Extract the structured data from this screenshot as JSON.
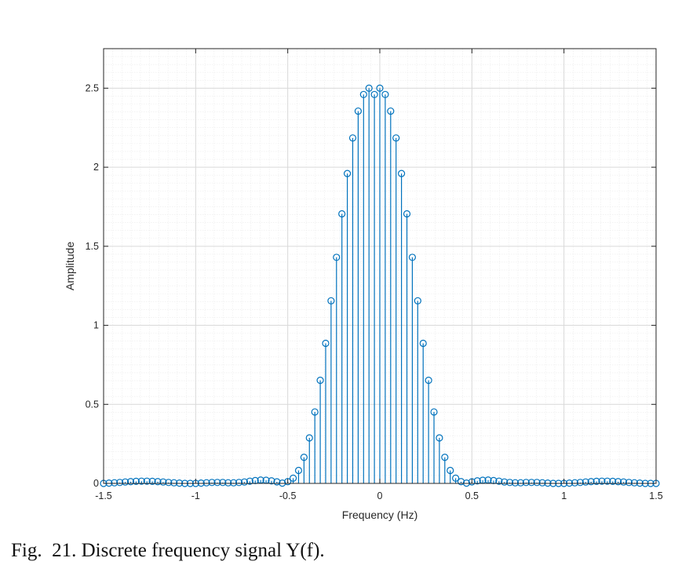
{
  "caption": "Fig.  21. Discrete frequency signal Y(f).",
  "chart_data": {
    "type": "stem",
    "title": "",
    "xlabel": "Frequency (Hz)",
    "ylabel": "Amplitude",
    "xlim": [
      -1.5,
      1.5
    ],
    "ylim": [
      0,
      2.75
    ],
    "xticks": [
      -1.5,
      -1,
      -0.5,
      0,
      0.5,
      1,
      1.5
    ],
    "xtick_labels": [
      "-1.5",
      "-1",
      "-0.5",
      "0",
      "0.5",
      "1",
      "1.5"
    ],
    "yticks": [
      0,
      0.5,
      1,
      1.5,
      2,
      2.5
    ],
    "ytick_labels": [
      "0",
      "0.5",
      "1",
      "1.5",
      "2",
      "2.5"
    ],
    "grid": true,
    "minor_grid": true,
    "color": "#0072BD",
    "series": [
      {
        "x": [
          -1.5,
          -1.4706,
          -1.4412,
          -1.4118,
          -1.3824,
          -1.3529,
          -1.3235,
          -1.2941,
          -1.2647,
          -1.2353,
          -1.2059,
          -1.1765,
          -1.1471,
          -1.1176,
          -1.0882,
          -1.0588,
          -1.0294,
          -1.0,
          -0.9706,
          -0.9412,
          -0.9118,
          -0.8824,
          -0.8529,
          -0.8235,
          -0.7941,
          -0.7647,
          -0.7353,
          -0.7059,
          -0.6765,
          -0.6471,
          -0.6176,
          -0.5882,
          -0.5588,
          -0.5294,
          -0.5,
          -0.4706,
          -0.4412,
          -0.4118,
          -0.3824,
          -0.3529,
          -0.3235,
          -0.2941,
          -0.2647,
          -0.2353,
          -0.2059,
          -0.1765,
          -0.1471,
          -0.1176,
          -0.0882,
          -0.0588,
          -0.0294,
          0.0,
          0.0294,
          0.0588,
          0.0882,
          0.1176,
          0.1471,
          0.1765,
          0.2059,
          0.2353,
          0.2647,
          0.2941,
          0.3235,
          0.3529,
          0.3824,
          0.4118,
          0.4412,
          0.4706,
          0.5,
          0.5294,
          0.5588,
          0.5882,
          0.6176,
          0.6471,
          0.6765,
          0.7059,
          0.7353,
          0.7647,
          0.7941,
          0.8235,
          0.8529,
          0.8824,
          0.9118,
          0.9412,
          0.9706,
          1.0,
          1.0294,
          1.0588,
          1.0882,
          1.1176,
          1.1471,
          1.1765,
          1.2059,
          1.2353,
          1.2647,
          1.2941,
          1.3235,
          1.3529,
          1.3824,
          1.4118,
          1.4412,
          1.4706,
          1.5
        ],
        "y": [
          0.0,
          0.002,
          0.004,
          0.006,
          0.009,
          0.011,
          0.013,
          0.014,
          0.014,
          0.013,
          0.011,
          0.009,
          0.006,
          0.004,
          0.002,
          0.0,
          0.0,
          0.0,
          0.002,
          0.004,
          0.006,
          0.006,
          0.006,
          0.004,
          0.004,
          0.006,
          0.009,
          0.014,
          0.018,
          0.021,
          0.02,
          0.016,
          0.01,
          0.002,
          0.011,
          0.033,
          0.082,
          0.165,
          0.288,
          0.452,
          0.652,
          0.886,
          1.155,
          1.43,
          1.705,
          1.96,
          2.185,
          2.355,
          2.46,
          2.5,
          2.46,
          2.5,
          2.46,
          2.355,
          2.185,
          1.96,
          1.705,
          1.43,
          1.155,
          0.886,
          0.652,
          0.452,
          0.288,
          0.165,
          0.082,
          0.033,
          0.011,
          0.002,
          0.01,
          0.016,
          0.02,
          0.021,
          0.018,
          0.014,
          0.009,
          0.006,
          0.004,
          0.004,
          0.006,
          0.006,
          0.006,
          0.004,
          0.002,
          0.0,
          0.0,
          0.0,
          0.002,
          0.004,
          0.006,
          0.009,
          0.011,
          0.013,
          0.014,
          0.014,
          0.013,
          0.011,
          0.009,
          0.006,
          0.004,
          0.002,
          0.0,
          0.0,
          0.0
        ]
      }
    ]
  }
}
